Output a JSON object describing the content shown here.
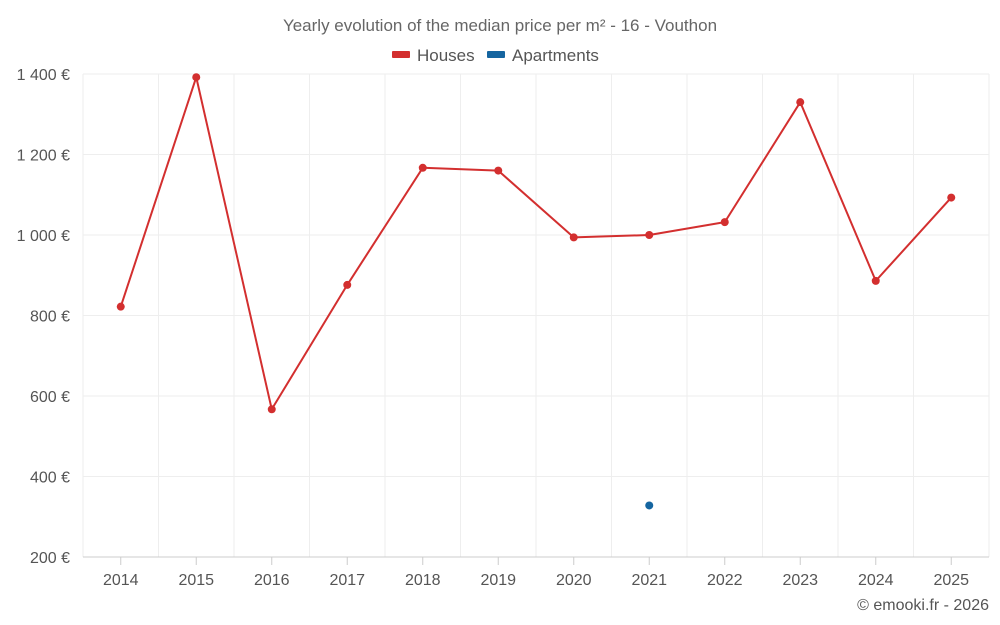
{
  "chart_data": {
    "type": "line",
    "title": "Yearly evolution of the median price per m² - 16 - Vouthon",
    "categories": [
      "2014",
      "2015",
      "2016",
      "2017",
      "2018",
      "2019",
      "2020",
      "2021",
      "2022",
      "2023",
      "2024",
      "2025"
    ],
    "series": [
      {
        "name": "Houses",
        "color": "#d32f2f",
        "values": [
          822,
          1392,
          567,
          876,
          1167,
          1160,
          994,
          1000,
          1032,
          1330,
          886,
          1093
        ]
      },
      {
        "name": "Apartments",
        "color": "#1565a0",
        "values": [
          null,
          null,
          null,
          null,
          null,
          null,
          null,
          328,
          null,
          null,
          null,
          null
        ]
      }
    ],
    "ylim": [
      200,
      1400
    ],
    "yticks": [
      200,
      400,
      600,
      800,
      1000,
      1200,
      1400
    ],
    "ytick_labels": [
      "200 €",
      "400 €",
      "600 €",
      "800 €",
      "1 000 €",
      "1 200 €",
      "1 400 €"
    ],
    "xlabel": "",
    "ylabel": "",
    "grid": true,
    "legend_position": "top-center"
  },
  "footer": {
    "copyright": "© emooki.fr - 2026"
  }
}
